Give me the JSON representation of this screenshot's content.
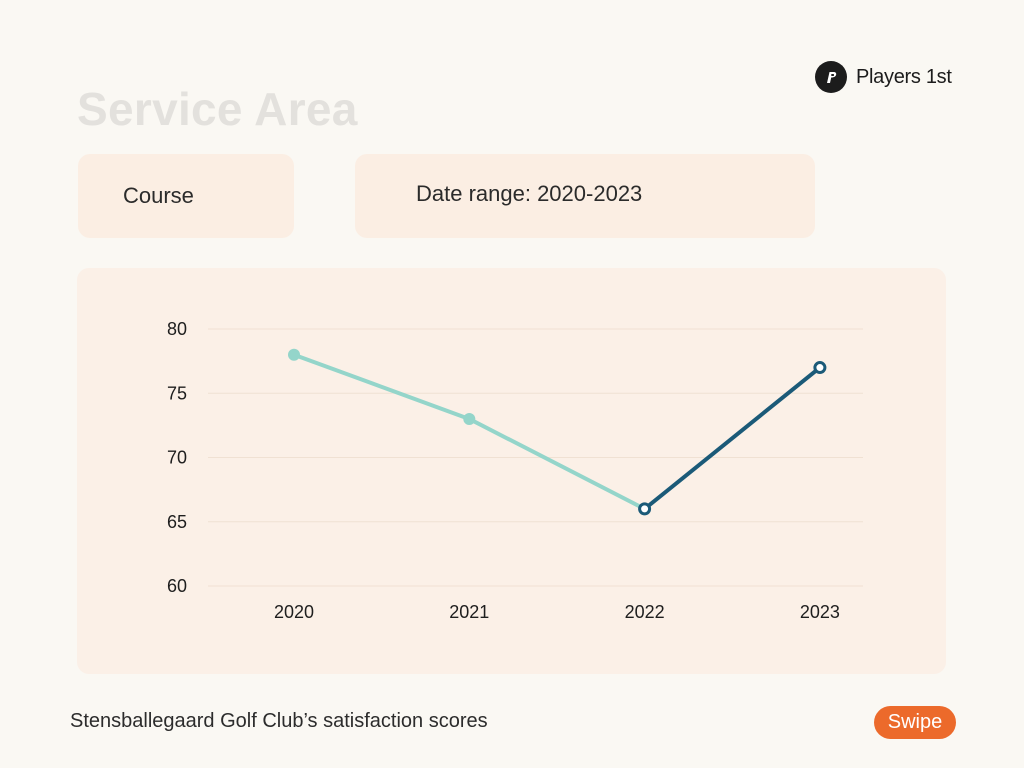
{
  "brand": {
    "name": "Players 1st",
    "logo_icon": "players-1st-logo-icon"
  },
  "page": {
    "title": "Service Area"
  },
  "filters": {
    "course_label": "Course",
    "date_range_label": "Date range: 2020-2023"
  },
  "footer": {
    "caption": "Stensballegaard Golf Club’s satisfaction scores",
    "swipe_label": "Swipe"
  },
  "colors": {
    "accent_light": "#94d5ca",
    "accent_dark": "#1b5a78",
    "swipe": "#ec6a2b"
  },
  "chart_data": {
    "type": "line",
    "title": "",
    "xlabel": "",
    "ylabel": "",
    "categories": [
      "2020",
      "2021",
      "2022",
      "2023"
    ],
    "series": [
      {
        "values": [
          78,
          73,
          66,
          77
        ],
        "highlight_from_index": 2
      }
    ],
    "ylim": [
      60,
      80
    ],
    "yticks": [
      60,
      65,
      70,
      75,
      80
    ],
    "grid": true,
    "legend": "none"
  }
}
